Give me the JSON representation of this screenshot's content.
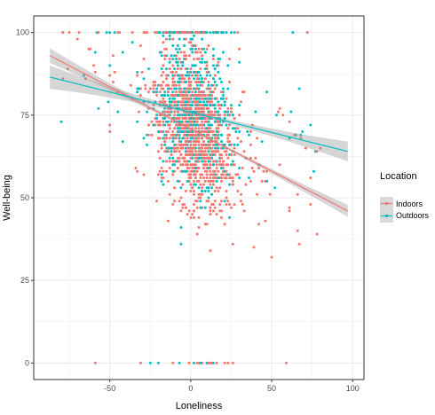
{
  "chart_data": {
    "type": "scatter",
    "xlabel": "Loneliness",
    "ylabel": "Well-being",
    "xlim": [
      -97,
      107
    ],
    "ylim": [
      -5,
      105
    ],
    "x_ticks": [
      -50,
      0,
      50,
      100
    ],
    "x_tick_labels": [
      "-50",
      "0",
      "50",
      "100"
    ],
    "y_ticks": [
      0,
      25,
      50,
      75,
      100
    ],
    "y_tick_labels": [
      "0",
      "25",
      "50",
      "75",
      "100"
    ],
    "grid": true,
    "legend": {
      "title": "Location",
      "placement": "right",
      "entries": [
        "Indoors",
        "Outdoors"
      ]
    },
    "series": [
      {
        "name": "Indoors",
        "color": "#F8766D",
        "fit": {
          "x": [
            -87,
            97
          ],
          "y": [
            93,
            46
          ]
        },
        "band_halfwidth_ends": [
          2.2,
          1.8
        ]
      },
      {
        "name": "Outdoors",
        "color": "#00BFC4",
        "fit": {
          "x": [
            -87,
            97
          ],
          "y": [
            86.5,
            64
          ]
        },
        "band_halfwidth_ends": [
          3.5,
          3.0
        ]
      }
    ]
  }
}
